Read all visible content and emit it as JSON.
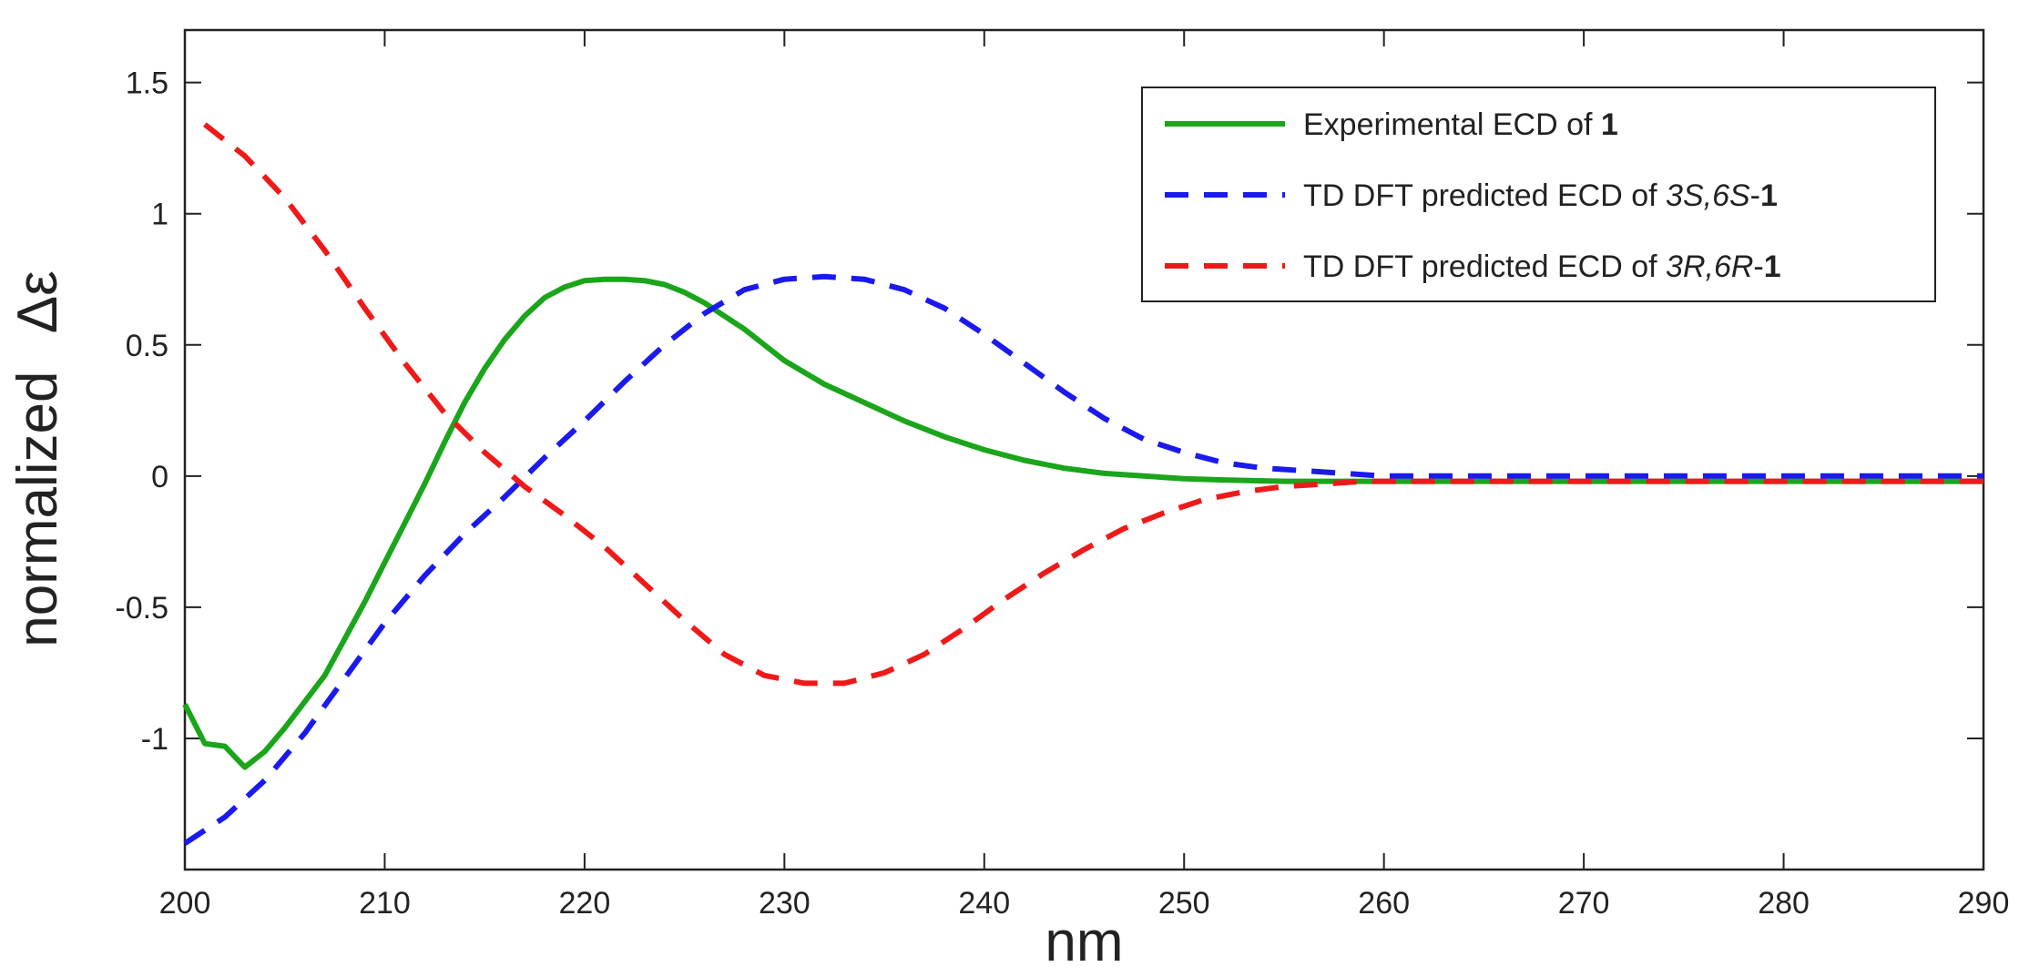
{
  "chart_data": {
    "type": "line",
    "title": "",
    "xlabel": "nm",
    "ylabel": "normalized",
    "ylabel_symbol": "Δε",
    "xlim": [
      200,
      290
    ],
    "ylim": [
      -1.5,
      1.7
    ],
    "xticks": [
      200,
      210,
      220,
      230,
      240,
      250,
      260,
      270,
      280,
      290
    ],
    "yticks": [
      -1,
      -0.5,
      0,
      0.5,
      1,
      1.5
    ],
    "ytick_labels": [
      "-1",
      "-0.5",
      "0",
      "0.5",
      "1",
      "1.5"
    ],
    "grid": false,
    "legend_position": "top-right",
    "series": [
      {
        "name": "Experimental ECD of 1",
        "legend_parts": [
          {
            "text": "Experimental ECD of ",
            "style": "normal"
          },
          {
            "text": "1",
            "style": "bold"
          }
        ],
        "color": "#1aa51a",
        "dash": "solid",
        "x": [
          200,
          201,
          202,
          203,
          204,
          205,
          206,
          207,
          208,
          209,
          210,
          211,
          212,
          213,
          214,
          215,
          216,
          217,
          218,
          219,
          220,
          221,
          222,
          223,
          224,
          225,
          226,
          227,
          228,
          229,
          230,
          232,
          234,
          236,
          238,
          240,
          242,
          244,
          246,
          248,
          250,
          252,
          255,
          258,
          260,
          265,
          270,
          280,
          290
        ],
        "y": [
          -0.87,
          -1.02,
          -1.03,
          -1.11,
          -1.05,
          -0.96,
          -0.86,
          -0.76,
          -0.62,
          -0.48,
          -0.33,
          -0.18,
          -0.03,
          0.13,
          0.28,
          0.41,
          0.52,
          0.61,
          0.68,
          0.72,
          0.745,
          0.75,
          0.75,
          0.745,
          0.73,
          0.7,
          0.66,
          0.61,
          0.56,
          0.5,
          0.44,
          0.35,
          0.28,
          0.21,
          0.15,
          0.1,
          0.06,
          0.03,
          0.01,
          0.0,
          -0.01,
          -0.015,
          -0.02,
          -0.02,
          -0.02,
          -0.02,
          -0.02,
          -0.02,
          -0.02
        ]
      },
      {
        "name": "TD DFT predicted ECD of 3S,6S-1",
        "legend_parts": [
          {
            "text": "TD DFT predicted ECD of ",
            "style": "normal"
          },
          {
            "text": "3S,6S",
            "style": "italic"
          },
          {
            "text": "-",
            "style": "normal"
          },
          {
            "text": "1",
            "style": "bold"
          }
        ],
        "color": "#1a1aee",
        "dash": "dashed",
        "x": [
          200,
          202,
          204,
          206,
          208,
          210,
          212,
          214,
          216,
          218,
          220,
          222,
          224,
          226,
          228,
          230,
          232,
          234,
          236,
          238,
          240,
          242,
          244,
          246,
          248,
          250,
          252,
          254,
          256,
          258,
          260,
          265,
          270,
          280,
          290
        ],
        "y": [
          -1.4,
          -1.3,
          -1.16,
          -0.98,
          -0.77,
          -0.56,
          -0.38,
          -0.22,
          -0.08,
          0.07,
          0.21,
          0.36,
          0.5,
          0.62,
          0.71,
          0.75,
          0.76,
          0.75,
          0.71,
          0.64,
          0.54,
          0.43,
          0.32,
          0.22,
          0.14,
          0.09,
          0.05,
          0.03,
          0.02,
          0.01,
          0.0,
          0.0,
          0.0,
          0.0,
          0.0
        ]
      },
      {
        "name": "TD DFT predicted ECD of 3R,6R-1",
        "legend_parts": [
          {
            "text": "TD DFT predicted ECD of ",
            "style": "normal"
          },
          {
            "text": "3R,6R",
            "style": "italic"
          },
          {
            "text": "-",
            "style": "normal"
          },
          {
            "text": "1",
            "style": "bold"
          }
        ],
        "color": "#ee1a1a",
        "dash": "dashed",
        "x": [
          201,
          203,
          205,
          207,
          209,
          211,
          213,
          215,
          217,
          219,
          221,
          223,
          225,
          227,
          229,
          231,
          233,
          235,
          237,
          239,
          241,
          243,
          245,
          247,
          249,
          251,
          253,
          255,
          257,
          259,
          261,
          265,
          270,
          280,
          290
        ],
        "y": [
          1.34,
          1.22,
          1.06,
          0.86,
          0.64,
          0.43,
          0.24,
          0.09,
          -0.04,
          -0.15,
          -0.27,
          -0.41,
          -0.55,
          -0.68,
          -0.76,
          -0.79,
          -0.79,
          -0.75,
          -0.68,
          -0.58,
          -0.47,
          -0.37,
          -0.28,
          -0.2,
          -0.14,
          -0.09,
          -0.06,
          -0.04,
          -0.03,
          -0.02,
          -0.02,
          -0.02,
          -0.02,
          -0.02,
          -0.02
        ]
      }
    ]
  }
}
